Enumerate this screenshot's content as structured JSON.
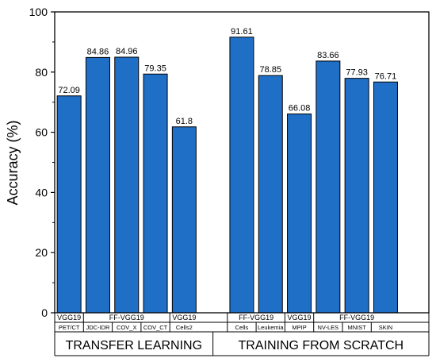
{
  "chart_data": {
    "type": "bar",
    "ylabel": "Accuracy (%)",
    "ylim": [
      0,
      100
    ],
    "yticks": [
      0,
      20,
      40,
      60,
      80,
      100
    ],
    "bar_color": "#1f6fc6",
    "bars": [
      {
        "slot": 1,
        "value": 72.09,
        "value_label": "72.09",
        "dataset": "PET/CT"
      },
      {
        "slot": 2,
        "value": 84.86,
        "value_label": "84.86",
        "dataset": "JDC-IDR"
      },
      {
        "slot": 3,
        "value": 84.96,
        "value_label": "84.96",
        "dataset": "COV_X"
      },
      {
        "slot": 4,
        "value": 79.35,
        "value_label": "79.35",
        "dataset": "COV_CT"
      },
      {
        "slot": 5,
        "value": 61.8,
        "value_label": "61.8",
        "dataset": "Cells2"
      },
      {
        "slot": 7,
        "value": 91.61,
        "value_label": "91.61",
        "dataset": "Cells"
      },
      {
        "slot": 8,
        "value": 78.85,
        "value_label": "78.85",
        "dataset": "Leukemia"
      },
      {
        "slot": 9,
        "value": 66.08,
        "value_label": "66.08",
        "dataset": "MPIP"
      },
      {
        "slot": 10,
        "value": 83.66,
        "value_label": "83.66",
        "dataset": "NV-LES"
      },
      {
        "slot": 11,
        "value": 77.93,
        "value_label": "77.93",
        "dataset": "MNIST"
      },
      {
        "slot": 12,
        "value": 76.71,
        "value_label": "76.71",
        "dataset": "SKIN"
      }
    ],
    "models": [
      {
        "label": "VGG19",
        "from": 1,
        "to": 1
      },
      {
        "label": "FF-VGG19",
        "from": 2,
        "to": 4
      },
      {
        "label": "VGG19",
        "from": 5,
        "to": 5
      },
      {
        "label": "FF-VGG19",
        "from": 7,
        "to": 8
      },
      {
        "label": "VGG19",
        "from": 9,
        "to": 9
      },
      {
        "label": "FF-VGG19",
        "from": 10,
        "to": 12
      }
    ],
    "groups": [
      {
        "label": "TRANSFER LEARNING",
        "from": 1,
        "to": 5
      },
      {
        "label": "TRAINING FROM SCRATCH",
        "from": 7,
        "to": 12
      }
    ]
  }
}
